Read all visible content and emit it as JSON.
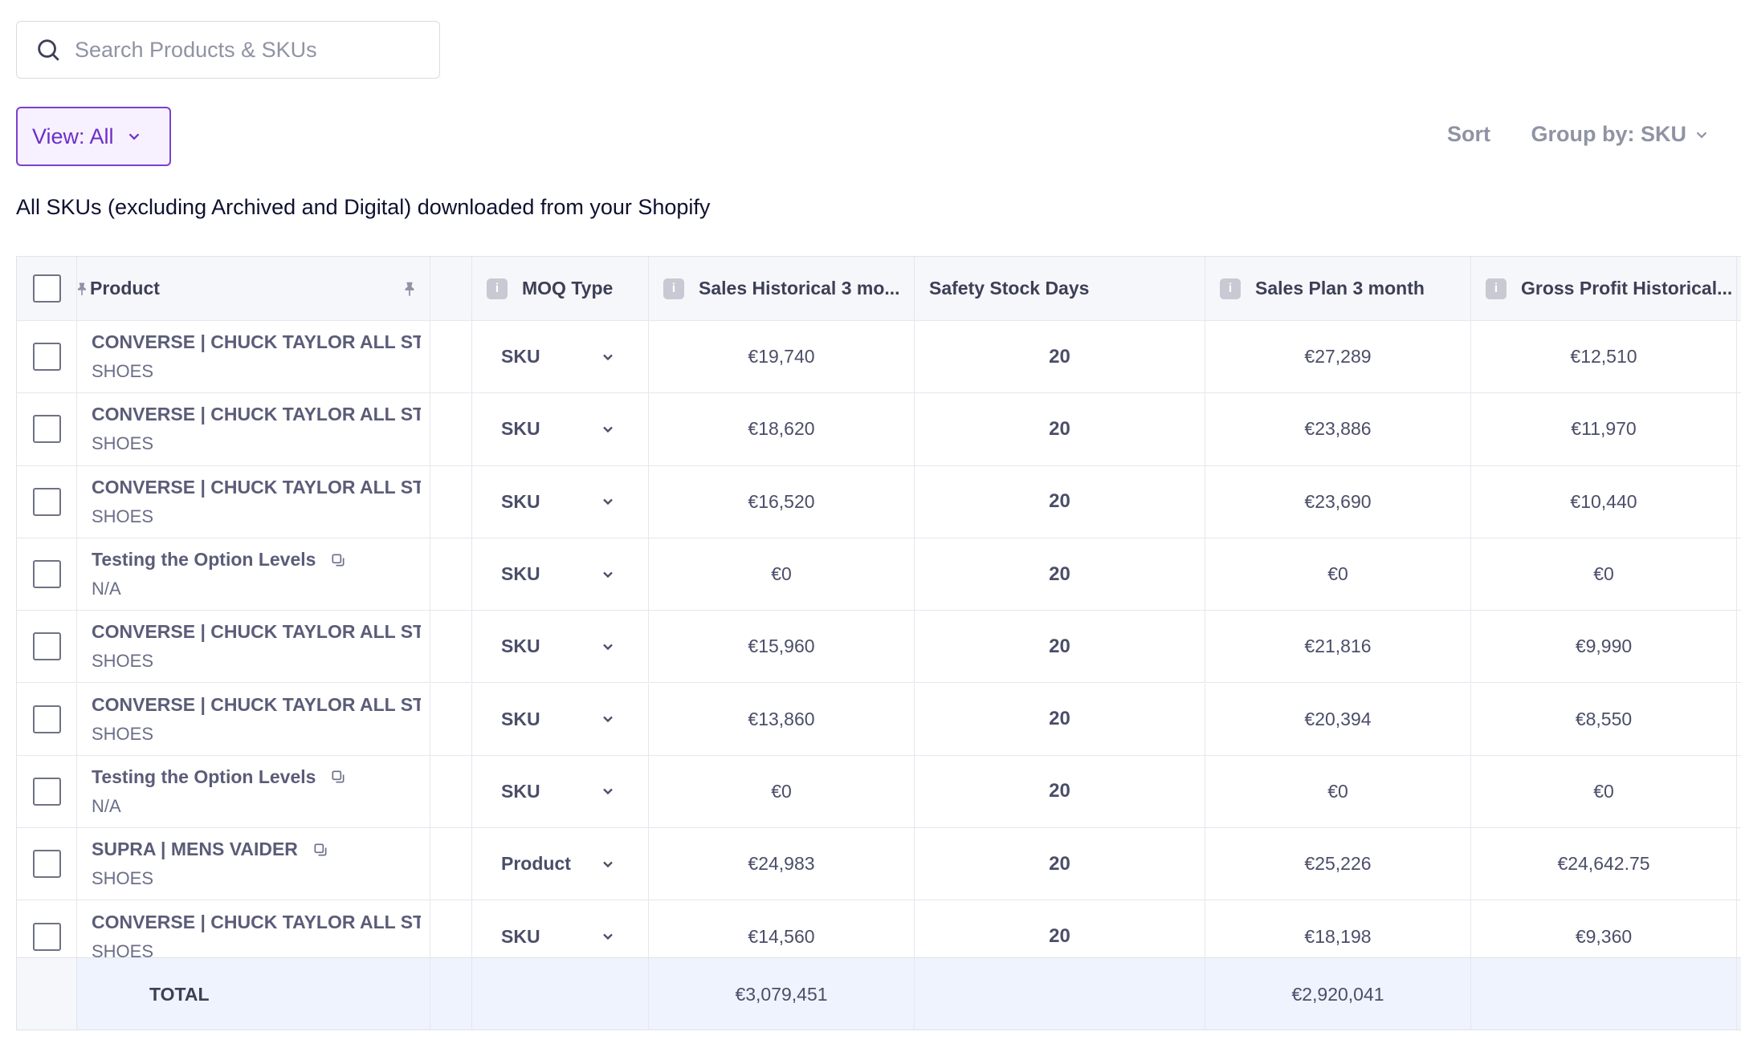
{
  "search": {
    "placeholder": "Search Products & SKUs"
  },
  "toolbar": {
    "view_label": "View: All",
    "sort_label": "Sort",
    "group_label": "Group by: SKU"
  },
  "description": "All SKUs (excluding Archived and Digital) downloaded from your Shopify",
  "table": {
    "headers": {
      "product": "Product",
      "moq_type": "MOQ Type",
      "sales_historical": "Sales Historical 3 mo...",
      "safety_stock": "Safety Stock Days",
      "sales_plan": "Sales Plan 3 month",
      "gross_profit": "Gross Profit Historical..."
    },
    "rows": [
      {
        "name": "CONVERSE | CHUCK TAYLOR ALL STA",
        "category": "SHOES",
        "moq": "SKU",
        "sales_hist": "€19,740",
        "safety": "20",
        "sales_plan": "€27,289",
        "gross_profit": "€12,510"
      },
      {
        "name": "CONVERSE | CHUCK TAYLOR ALL STA",
        "category": "SHOES",
        "moq": "SKU",
        "sales_hist": "€18,620",
        "safety": "20",
        "sales_plan": "€23,886",
        "gross_profit": "€11,970"
      },
      {
        "name": "CONVERSE | CHUCK TAYLOR ALL STA",
        "category": "SHOES",
        "moq": "SKU",
        "sales_hist": "€16,520",
        "safety": "20",
        "sales_plan": "€23,690",
        "gross_profit": "€10,440"
      },
      {
        "name": "Testing the Option Levels",
        "category": "N/A",
        "moq": "SKU",
        "sales_hist": "€0",
        "safety": "20",
        "sales_plan": "€0",
        "gross_profit": "€0"
      },
      {
        "name": "CONVERSE | CHUCK TAYLOR ALL STA",
        "category": "SHOES",
        "moq": "SKU",
        "sales_hist": "€15,960",
        "safety": "20",
        "sales_plan": "€21,816",
        "gross_profit": "€9,990"
      },
      {
        "name": "CONVERSE | CHUCK TAYLOR ALL STA",
        "category": "SHOES",
        "moq": "SKU",
        "sales_hist": "€13,860",
        "safety": "20",
        "sales_plan": "€20,394",
        "gross_profit": "€8,550"
      },
      {
        "name": "Testing the Option Levels",
        "category": "N/A",
        "moq": "SKU",
        "sales_hist": "€0",
        "safety": "20",
        "sales_plan": "€0",
        "gross_profit": "€0"
      },
      {
        "name": "SUPRA | MENS VAIDER",
        "category": "SHOES",
        "moq": "Product",
        "sales_hist": "€24,983",
        "safety": "20",
        "sales_plan": "€25,226",
        "gross_profit": "€24,642.75"
      },
      {
        "name": "CONVERSE | CHUCK TAYLOR ALL STA",
        "category": "SHOES",
        "moq": "SKU",
        "sales_hist": "€14,560",
        "safety": "20",
        "sales_plan": "€18,198",
        "gross_profit": "€9,360"
      }
    ],
    "total": {
      "label": "TOTAL",
      "sales_hist": "€3,079,451",
      "sales_plan": "€2,920,041"
    }
  }
}
